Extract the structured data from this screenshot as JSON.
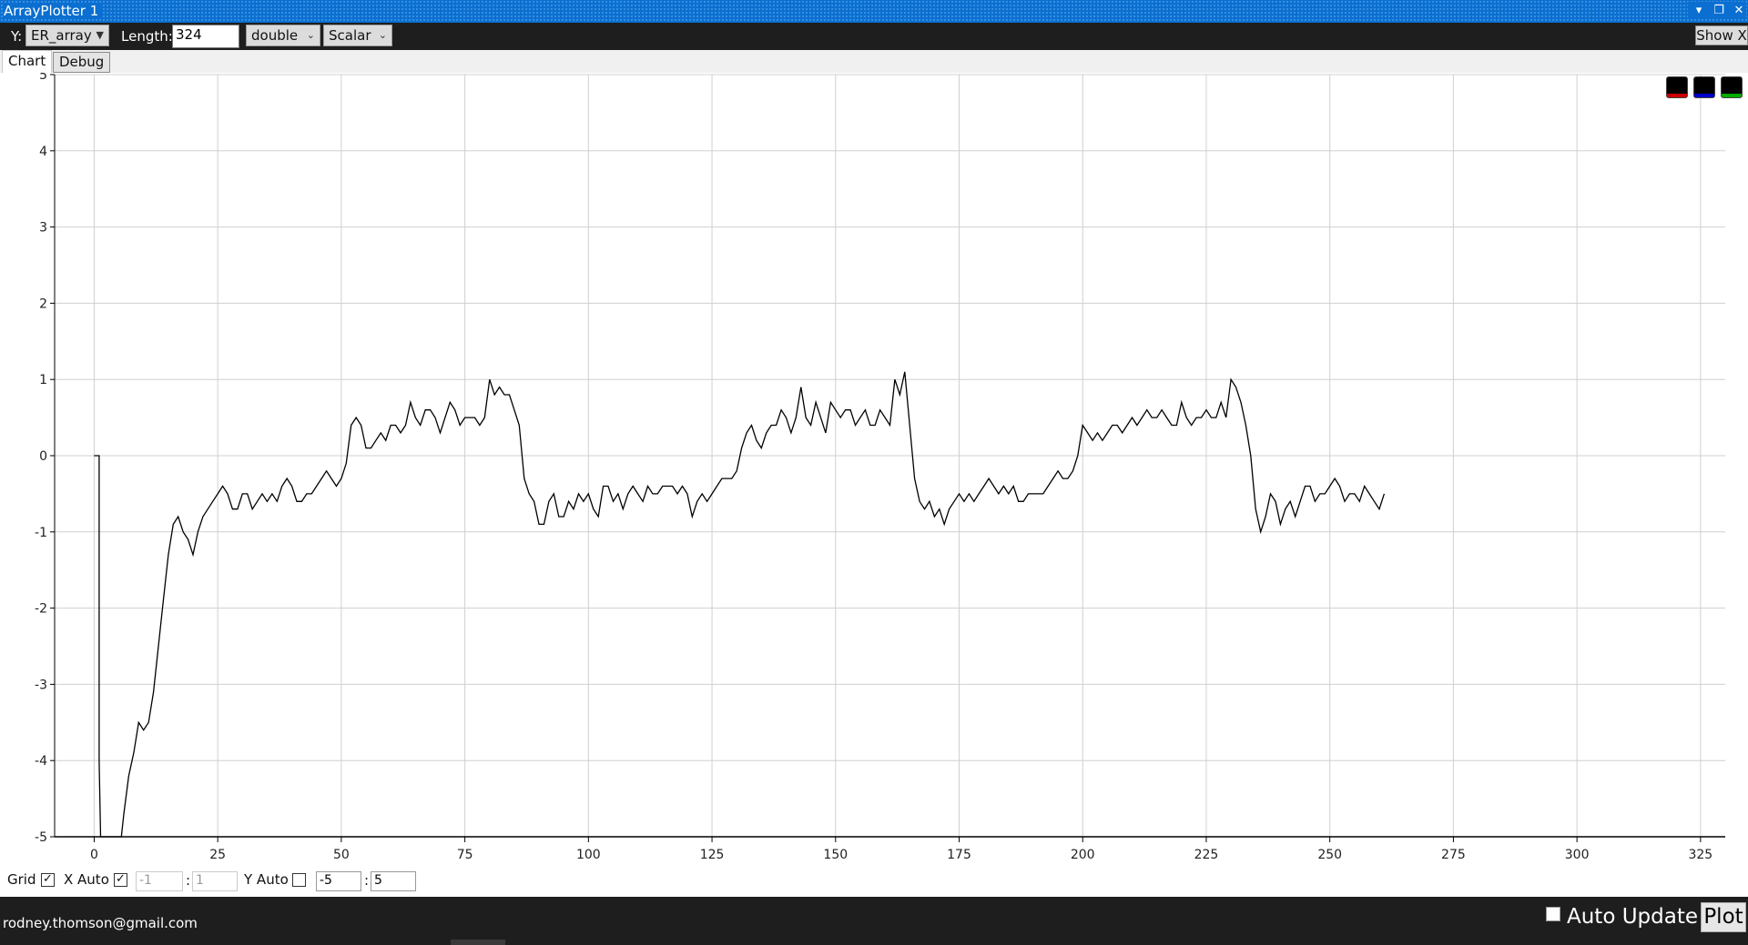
{
  "window": {
    "title": "ArrayPlotter 1",
    "controls": [
      "chevron-down",
      "restore",
      "close"
    ]
  },
  "toolbar": {
    "y_label": "Y:",
    "y_selected": "ER_array",
    "length_label": "Length:",
    "length_value": "324",
    "type_selected": "double",
    "mode_selected": "Scalar",
    "show_x_label": "Show X"
  },
  "tabs": [
    {
      "label": "Chart",
      "active": true
    },
    {
      "label": "Debug",
      "active": false
    }
  ],
  "legend_swatches": [
    {
      "name": "red-series",
      "color": "#cc0000"
    },
    {
      "name": "blue-series",
      "color": "#0000cc"
    },
    {
      "name": "green-series",
      "color": "#00aa00"
    }
  ],
  "bottom_controls": {
    "grid_label": "Grid",
    "grid_checked": true,
    "x_auto_label": "X Auto",
    "x_auto_checked": true,
    "x_min": "-1",
    "x_max": "1",
    "sep": ":",
    "y_auto_label": "Y Auto",
    "y_auto_checked": false,
    "y_min": "-5",
    "y_max": "5"
  },
  "status": {
    "email": "rodney.thomson@gmail.com",
    "auto_update_label": "Auto Update",
    "auto_update_checked": false,
    "plot_button": "Plot"
  },
  "chart_data": {
    "type": "line",
    "title": "",
    "xlabel": "",
    "ylabel": "",
    "xlim": [
      -8,
      330
    ],
    "ylim": [
      -5,
      5
    ],
    "grid": true,
    "x_ticks": [
      0,
      25,
      50,
      75,
      100,
      125,
      150,
      175,
      200,
      225,
      250,
      275,
      300,
      325
    ],
    "y_ticks": [
      -5,
      -4,
      -3,
      -2,
      -1,
      0,
      1,
      2,
      3,
      4,
      5
    ],
    "line_color": "#000000",
    "series": [
      {
        "points": [
          [
            0,
            0
          ],
          [
            1,
            0
          ],
          [
            1,
            -4
          ],
          [
            1.3,
            -5.5
          ],
          [
            5.5,
            -5.5
          ],
          [
            6,
            -4.7
          ],
          [
            7,
            -4.2
          ],
          [
            8,
            -3.9
          ],
          [
            9,
            -3.5
          ],
          [
            10,
            -3.6
          ],
          [
            11,
            -3.5
          ],
          [
            12,
            -3.1
          ],
          [
            13,
            -2.5
          ],
          [
            14,
            -1.9
          ],
          [
            15,
            -1.3
          ],
          [
            16,
            -0.9
          ],
          [
            17,
            -0.8
          ],
          [
            18,
            -1.0
          ],
          [
            19,
            -1.1
          ],
          [
            20,
            -1.3
          ],
          [
            21,
            -1.0
          ],
          [
            22,
            -0.8
          ],
          [
            23,
            -0.7
          ],
          [
            24,
            -0.6
          ],
          [
            25,
            -0.5
          ],
          [
            26,
            -0.4
          ],
          [
            27,
            -0.5
          ],
          [
            28,
            -0.7
          ],
          [
            29,
            -0.7
          ],
          [
            30,
            -0.5
          ],
          [
            31,
            -0.5
          ],
          [
            32,
            -0.7
          ],
          [
            33,
            -0.6
          ],
          [
            34,
            -0.5
          ],
          [
            35,
            -0.6
          ],
          [
            36,
            -0.5
          ],
          [
            37,
            -0.6
          ],
          [
            38,
            -0.4
          ],
          [
            39,
            -0.3
          ],
          [
            40,
            -0.4
          ],
          [
            41,
            -0.6
          ],
          [
            42,
            -0.6
          ],
          [
            43,
            -0.5
          ],
          [
            44,
            -0.5
          ],
          [
            45,
            -0.4
          ],
          [
            46,
            -0.3
          ],
          [
            47,
            -0.2
          ],
          [
            48,
            -0.3
          ],
          [
            49,
            -0.4
          ],
          [
            50,
            -0.3
          ],
          [
            51,
            -0.1
          ],
          [
            52,
            0.4
          ],
          [
            53,
            0.5
          ],
          [
            54,
            0.4
          ],
          [
            55,
            0.1
          ],
          [
            56,
            0.1
          ],
          [
            57,
            0.2
          ],
          [
            58,
            0.3
          ],
          [
            59,
            0.2
          ],
          [
            60,
            0.4
          ],
          [
            61,
            0.4
          ],
          [
            62,
            0.3
          ],
          [
            63,
            0.4
          ],
          [
            64,
            0.7
          ],
          [
            65,
            0.5
          ],
          [
            66,
            0.4
          ],
          [
            67,
            0.6
          ],
          [
            68,
            0.6
          ],
          [
            69,
            0.5
          ],
          [
            70,
            0.3
          ],
          [
            71,
            0.5
          ],
          [
            72,
            0.7
          ],
          [
            73,
            0.6
          ],
          [
            74,
            0.4
          ],
          [
            75,
            0.5
          ],
          [
            76,
            0.5
          ],
          [
            77,
            0.5
          ],
          [
            78,
            0.4
          ],
          [
            79,
            0.5
          ],
          [
            80,
            1.0
          ],
          [
            81,
            0.8
          ],
          [
            82,
            0.9
          ],
          [
            83,
            0.8
          ],
          [
            84,
            0.8
          ],
          [
            85,
            0.6
          ],
          [
            86,
            0.4
          ],
          [
            87,
            -0.3
          ],
          [
            88,
            -0.5
          ],
          [
            89,
            -0.6
          ],
          [
            90,
            -0.9
          ],
          [
            91,
            -0.9
          ],
          [
            92,
            -0.6
          ],
          [
            93,
            -0.5
          ],
          [
            94,
            -0.8
          ],
          [
            95,
            -0.8
          ],
          [
            96,
            -0.6
          ],
          [
            97,
            -0.7
          ],
          [
            98,
            -0.5
          ],
          [
            99,
            -0.6
          ],
          [
            100,
            -0.5
          ],
          [
            101,
            -0.7
          ],
          [
            102,
            -0.8
          ],
          [
            103,
            -0.4
          ],
          [
            104,
            -0.4
          ],
          [
            105,
            -0.6
          ],
          [
            106,
            -0.5
          ],
          [
            107,
            -0.7
          ],
          [
            108,
            -0.5
          ],
          [
            109,
            -0.4
          ],
          [
            110,
            -0.5
          ],
          [
            111,
            -0.6
          ],
          [
            112,
            -0.4
          ],
          [
            113,
            -0.5
          ],
          [
            114,
            -0.5
          ],
          [
            115,
            -0.4
          ],
          [
            116,
            -0.4
          ],
          [
            117,
            -0.4
          ],
          [
            118,
            -0.5
          ],
          [
            119,
            -0.4
          ],
          [
            120,
            -0.5
          ],
          [
            121,
            -0.8
          ],
          [
            122,
            -0.6
          ],
          [
            123,
            -0.5
          ],
          [
            124,
            -0.6
          ],
          [
            125,
            -0.5
          ],
          [
            126,
            -0.4
          ],
          [
            127,
            -0.3
          ],
          [
            128,
            -0.3
          ],
          [
            129,
            -0.3
          ],
          [
            130,
            -0.2
          ],
          [
            131,
            0.1
          ],
          [
            132,
            0.3
          ],
          [
            133,
            0.4
          ],
          [
            134,
            0.2
          ],
          [
            135,
            0.1
          ],
          [
            136,
            0.3
          ],
          [
            137,
            0.4
          ],
          [
            138,
            0.4
          ],
          [
            139,
            0.6
          ],
          [
            140,
            0.5
          ],
          [
            141,
            0.3
          ],
          [
            142,
            0.5
          ],
          [
            143,
            0.9
          ],
          [
            144,
            0.5
          ],
          [
            145,
            0.4
          ],
          [
            146,
            0.7
          ],
          [
            147,
            0.5
          ],
          [
            148,
            0.3
          ],
          [
            149,
            0.7
          ],
          [
            150,
            0.6
          ],
          [
            151,
            0.5
          ],
          [
            152,
            0.6
          ],
          [
            153,
            0.6
          ],
          [
            154,
            0.4
          ],
          [
            155,
            0.5
          ],
          [
            156,
            0.6
          ],
          [
            157,
            0.4
          ],
          [
            158,
            0.4
          ],
          [
            159,
            0.6
          ],
          [
            160,
            0.5
          ],
          [
            161,
            0.4
          ],
          [
            162,
            1.0
          ],
          [
            163,
            0.8
          ],
          [
            164,
            1.1
          ],
          [
            165,
            0.4
          ],
          [
            166,
            -0.3
          ],
          [
            167,
            -0.6
          ],
          [
            168,
            -0.7
          ],
          [
            169,
            -0.6
          ],
          [
            170,
            -0.8
          ],
          [
            171,
            -0.7
          ],
          [
            172,
            -0.9
          ],
          [
            173,
            -0.7
          ],
          [
            174,
            -0.6
          ],
          [
            175,
            -0.5
          ],
          [
            176,
            -0.6
          ],
          [
            177,
            -0.5
          ],
          [
            178,
            -0.6
          ],
          [
            179,
            -0.5
          ],
          [
            180,
            -0.4
          ],
          [
            181,
            -0.3
          ],
          [
            182,
            -0.4
          ],
          [
            183,
            -0.5
          ],
          [
            184,
            -0.4
          ],
          [
            185,
            -0.5
          ],
          [
            186,
            -0.4
          ],
          [
            187,
            -0.6
          ],
          [
            188,
            -0.6
          ],
          [
            189,
            -0.5
          ],
          [
            190,
            -0.5
          ],
          [
            191,
            -0.5
          ],
          [
            192,
            -0.5
          ],
          [
            193,
            -0.4
          ],
          [
            194,
            -0.3
          ],
          [
            195,
            -0.2
          ],
          [
            196,
            -0.3
          ],
          [
            197,
            -0.3
          ],
          [
            198,
            -0.2
          ],
          [
            199,
            0.0
          ],
          [
            200,
            0.4
          ],
          [
            201,
            0.3
          ],
          [
            202,
            0.2
          ],
          [
            203,
            0.3
          ],
          [
            204,
            0.2
          ],
          [
            205,
            0.3
          ],
          [
            206,
            0.4
          ],
          [
            207,
            0.4
          ],
          [
            208,
            0.3
          ],
          [
            209,
            0.4
          ],
          [
            210,
            0.5
          ],
          [
            211,
            0.4
          ],
          [
            212,
            0.5
          ],
          [
            213,
            0.6
          ],
          [
            214,
            0.5
          ],
          [
            215,
            0.5
          ],
          [
            216,
            0.6
          ],
          [
            217,
            0.5
          ],
          [
            218,
            0.4
          ],
          [
            219,
            0.4
          ],
          [
            220,
            0.7
          ],
          [
            221,
            0.5
          ],
          [
            222,
            0.4
          ],
          [
            223,
            0.5
          ],
          [
            224,
            0.5
          ],
          [
            225,
            0.6
          ],
          [
            226,
            0.5
          ],
          [
            227,
            0.5
          ],
          [
            228,
            0.7
          ],
          [
            229,
            0.5
          ],
          [
            230,
            1.0
          ],
          [
            231,
            0.9
          ],
          [
            232,
            0.7
          ],
          [
            233,
            0.4
          ],
          [
            234,
            0.0
          ],
          [
            235,
            -0.7
          ],
          [
            236,
            -1.0
          ],
          [
            237,
            -0.8
          ],
          [
            238,
            -0.5
          ],
          [
            239,
            -0.6
          ],
          [
            240,
            -0.9
          ],
          [
            241,
            -0.7
          ],
          [
            242,
            -0.6
          ],
          [
            243,
            -0.8
          ],
          [
            244,
            -0.6
          ],
          [
            245,
            -0.4
          ],
          [
            246,
            -0.4
          ],
          [
            247,
            -0.6
          ],
          [
            248,
            -0.5
          ],
          [
            249,
            -0.5
          ],
          [
            250,
            -0.4
          ],
          [
            251,
            -0.3
          ],
          [
            252,
            -0.4
          ],
          [
            253,
            -0.6
          ],
          [
            254,
            -0.5
          ],
          [
            255,
            -0.5
          ],
          [
            256,
            -0.6
          ],
          [
            257,
            -0.4
          ],
          [
            258,
            -0.5
          ],
          [
            259,
            -0.6
          ],
          [
            260,
            -0.7
          ],
          [
            261,
            -0.5
          ]
        ]
      }
    ]
  }
}
